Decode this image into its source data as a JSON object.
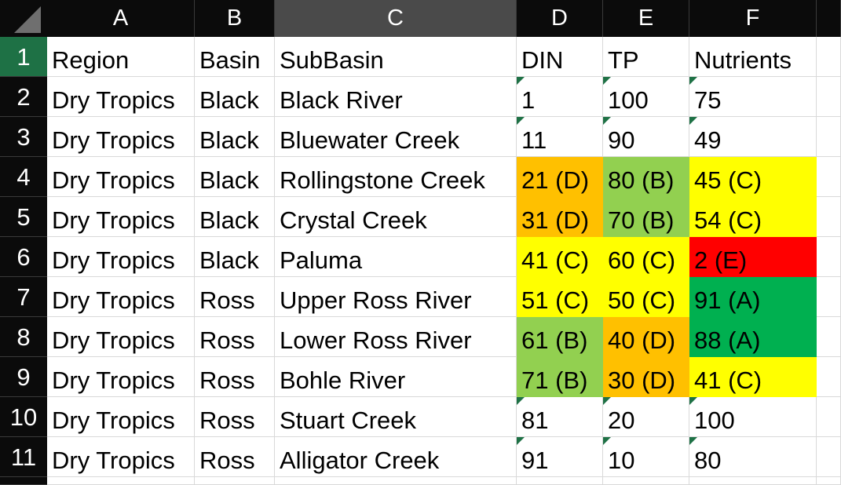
{
  "corner_label": "",
  "columns": [
    "A",
    "B",
    "C",
    "D",
    "E",
    "F"
  ],
  "selected_column": "C",
  "active_row": "1",
  "rows": [
    {
      "num": "1",
      "cells": [
        "Region",
        "Basin",
        "SubBasin",
        "DIN",
        "TP",
        "Nutrients"
      ]
    },
    {
      "num": "2",
      "cells": [
        "Dry Tropics",
        "Black",
        "Black River",
        "1",
        "100",
        "75"
      ]
    },
    {
      "num": "3",
      "cells": [
        "Dry Tropics",
        "Black",
        "Bluewater Creek",
        "11",
        "90",
        "49"
      ]
    },
    {
      "num": "4",
      "cells": [
        "Dry Tropics",
        "Black",
        "Rollingstone Creek",
        "21 (D)",
        "80 (B)",
        "45 (C)"
      ]
    },
    {
      "num": "5",
      "cells": [
        "Dry Tropics",
        "Black",
        "Crystal Creek",
        "31 (D)",
        "70 (B)",
        "54 (C)"
      ]
    },
    {
      "num": "6",
      "cells": [
        "Dry Tropics",
        "Black",
        "Paluma",
        "41 (C)",
        "60 (C)",
        "2 (E)"
      ]
    },
    {
      "num": "7",
      "cells": [
        "Dry Tropics",
        "Ross",
        "Upper Ross River",
        "51 (C)",
        "50 (C)",
        "91 (A)"
      ]
    },
    {
      "num": "8",
      "cells": [
        "Dry Tropics",
        "Ross",
        "Lower Ross River",
        "61 (B)",
        "40 (D)",
        "88 (A)"
      ]
    },
    {
      "num": "9",
      "cells": [
        "Dry Tropics",
        "Ross",
        "Bohle River",
        "71 (B)",
        "30 (D)",
        "41 (C)"
      ]
    },
    {
      "num": "10",
      "cells": [
        "Dry Tropics",
        "Ross",
        "Stuart Creek",
        "81",
        "20",
        "100"
      ]
    },
    {
      "num": "11",
      "cells": [
        "Dry Tropics",
        "Ross",
        "Alligator Creek",
        "91",
        "10",
        "80"
      ]
    }
  ],
  "grade_colors": {
    "A": "#00b050",
    "B": "#92d050",
    "C": "#ffff00",
    "D": "#ffc000",
    "E": "#ff0000"
  },
  "number_stored_as_text_indicator": {
    "rows": [
      "2",
      "3",
      "10",
      "11"
    ],
    "columns": [
      "D",
      "E",
      "F"
    ],
    "color": "#1e7145",
    "icon": "green-corner-triangle-icon"
  }
}
